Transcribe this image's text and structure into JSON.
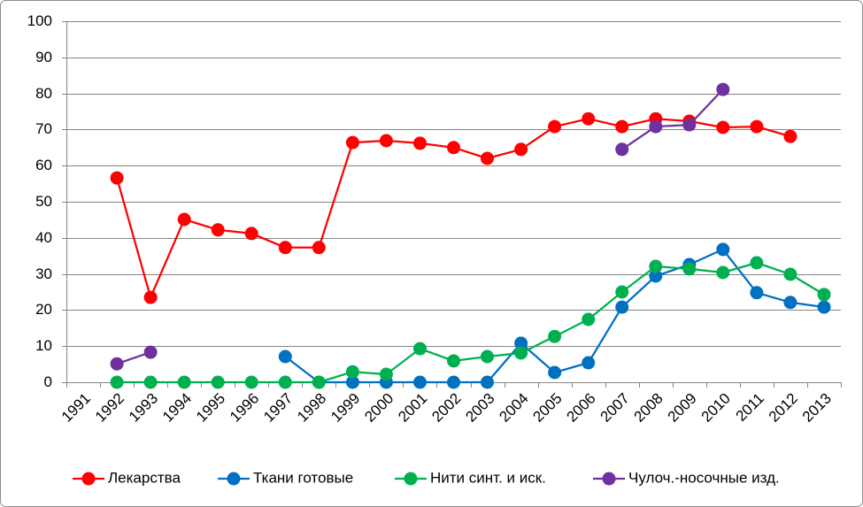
{
  "chart_data": {
    "type": "line",
    "categories": [
      "1991",
      "1992",
      "1993",
      "1994",
      "1995",
      "1996",
      "1997",
      "1998",
      "1999",
      "2000",
      "2001",
      "2002",
      "2003",
      "2004",
      "2005",
      "2006",
      "2007",
      "2008",
      "2009",
      "2010",
      "2011",
      "2012",
      "2013"
    ],
    "series": [
      {
        "name": "Лекарства",
        "color": "#ff0000",
        "values": [
          null,
          56.6,
          23.5,
          45.1,
          42.2,
          41.2,
          37.3,
          37.3,
          66.4,
          66.9,
          66.2,
          65.0,
          62.0,
          64.5,
          70.8,
          73.0,
          70.8,
          73.0,
          72.3,
          70.6,
          70.8,
          68.1,
          null
        ]
      },
      {
        "name": "Ткани готовые",
        "color": "#0070c0",
        "values": [
          null,
          null,
          null,
          null,
          null,
          null,
          7.1,
          0,
          0,
          0,
          0,
          0,
          0,
          10.8,
          2.7,
          5.4,
          20.8,
          29.4,
          32.6,
          36.8,
          24.8,
          22.1,
          20.8
        ]
      },
      {
        "name": "Нити синт. и иск.",
        "color": "#00b050",
        "values": [
          null,
          0,
          0,
          0,
          0,
          0,
          0,
          0,
          2.9,
          2.2,
          9.3,
          5.9,
          7.1,
          8.1,
          12.7,
          17.4,
          25.0,
          32.1,
          31.4,
          30.4,
          33.1,
          29.9,
          24.3
        ]
      },
      {
        "name": "Чулоч.-носочные изд.",
        "color": "#7030a0",
        "values": [
          null,
          5.1,
          8.3,
          null,
          null,
          null,
          null,
          null,
          null,
          null,
          null,
          null,
          null,
          null,
          null,
          null,
          64.5,
          70.8,
          71.3,
          81.1,
          null,
          null,
          null
        ]
      }
    ],
    "ylim": [
      0,
      100
    ],
    "yticks": [
      0,
      10,
      20,
      30,
      40,
      50,
      60,
      70,
      80,
      90,
      100
    ],
    "grid": true,
    "legend": "bottom",
    "marker": "circle",
    "gridline_color": "#868686",
    "border_color": "#8c8c8c"
  }
}
